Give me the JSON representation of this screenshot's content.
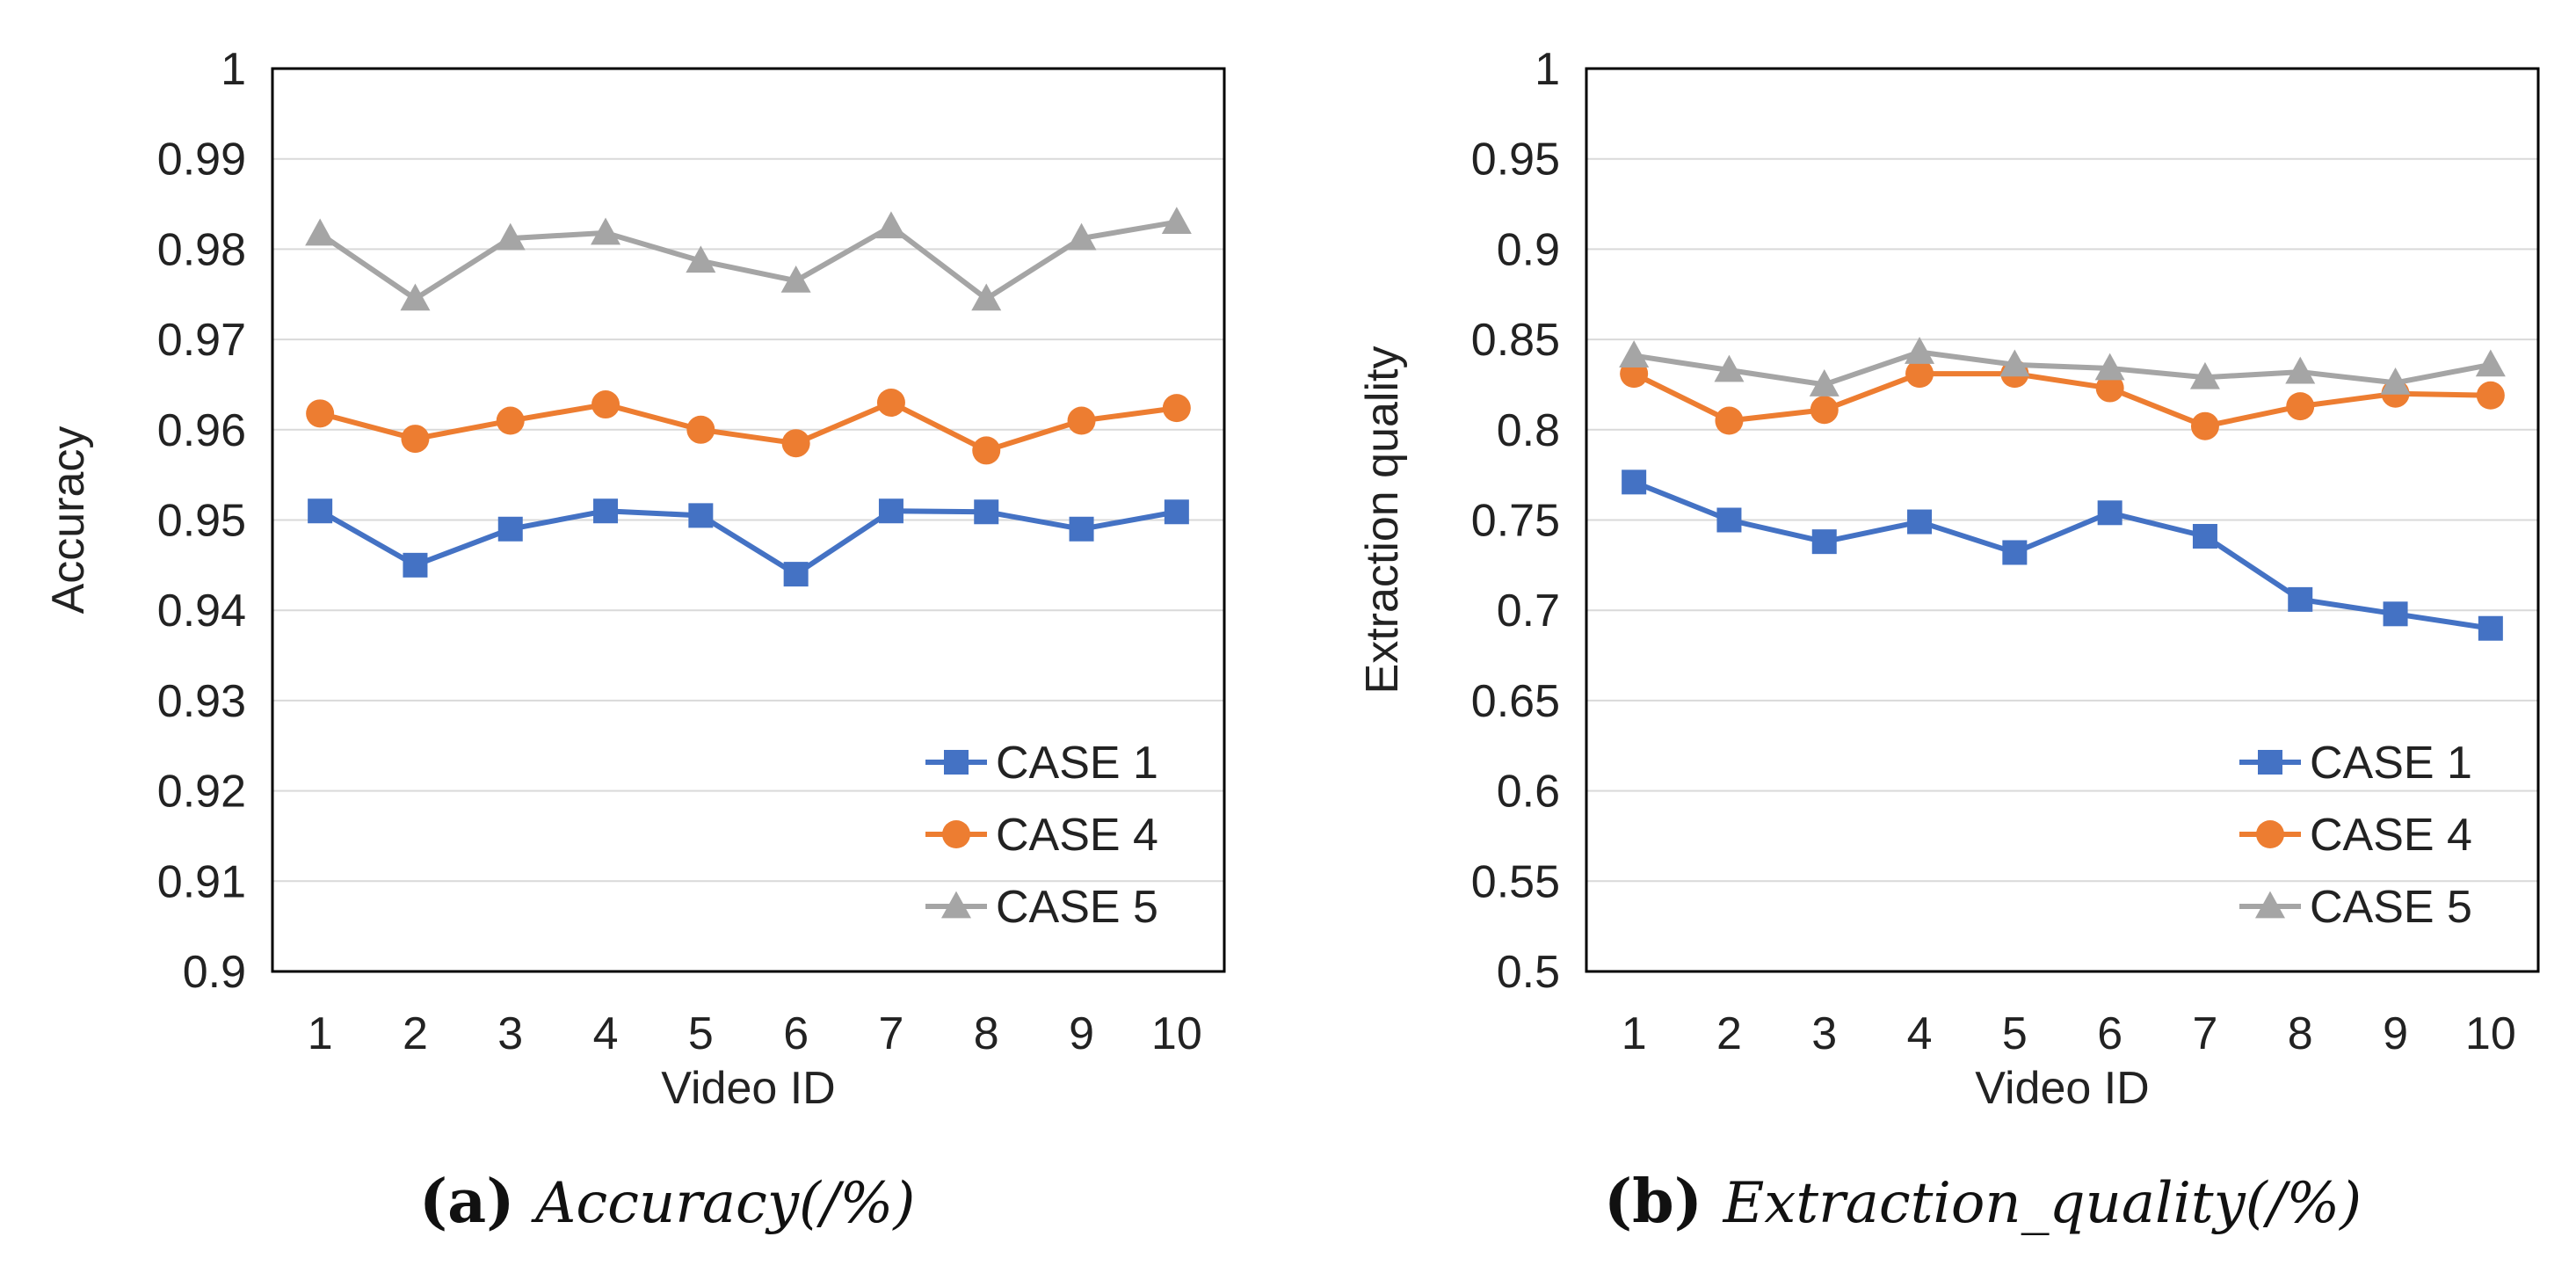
{
  "chart_data": [
    {
      "type": "line",
      "title": "",
      "caption_label": "(a)",
      "caption_text": "Accuracy(/%)",
      "xlabel": "Video ID",
      "ylabel": "Accuracy",
      "categories": [
        "1",
        "2",
        "3",
        "4",
        "5",
        "6",
        "7",
        "8",
        "9",
        "10"
      ],
      "ylim": [
        0.9,
        1.0
      ],
      "yticks": [
        0.9,
        0.91,
        0.92,
        0.93,
        0.94,
        0.95,
        0.96,
        0.97,
        0.98,
        0.99,
        1.0
      ],
      "ytick_labels": [
        "0.9",
        "0.91",
        "0.92",
        "0.93",
        "0.94",
        "0.95",
        "0.96",
        "0.97",
        "0.98",
        "0.99",
        "1"
      ],
      "grid": true,
      "legend_position": "bottom-right",
      "series": [
        {
          "name": "CASE 1",
          "color": "#4472C4",
          "marker": "square",
          "values": [
            0.951,
            0.945,
            0.949,
            0.951,
            0.9505,
            0.944,
            0.951,
            0.9509,
            0.949,
            0.9509
          ]
        },
        {
          "name": "CASE 4",
          "color": "#ED7D31",
          "marker": "circle",
          "values": [
            0.9618,
            0.959,
            0.961,
            0.9628,
            0.96,
            0.9585,
            0.963,
            0.9577,
            0.961,
            0.9624
          ]
        },
        {
          "name": "CASE 5",
          "color": "#A5A5A5",
          "marker": "triangle",
          "values": [
            0.9817,
            0.9745,
            0.9812,
            0.9818,
            0.9787,
            0.9765,
            0.9825,
            0.9745,
            0.9812,
            0.983
          ]
        }
      ]
    },
    {
      "type": "line",
      "title": "",
      "caption_label": "(b)",
      "caption_text": "Extraction_quality(/%)",
      "xlabel": "Video ID",
      "ylabel": "Extraction quality",
      "categories": [
        "1",
        "2",
        "3",
        "4",
        "5",
        "6",
        "7",
        "8",
        "9",
        "10"
      ],
      "ylim": [
        0.5,
        1.0
      ],
      "yticks": [
        0.5,
        0.55,
        0.6,
        0.65,
        0.7,
        0.75,
        0.8,
        0.85,
        0.9,
        0.95,
        1.0
      ],
      "ytick_labels": [
        "0.5",
        "0.55",
        "0.6",
        "0.65",
        "0.7",
        "0.75",
        "0.8",
        "0.85",
        "0.9",
        "0.95",
        "1"
      ],
      "grid": true,
      "legend_position": "bottom-right",
      "series": [
        {
          "name": "CASE 1",
          "color": "#4472C4",
          "marker": "square",
          "values": [
            0.771,
            0.75,
            0.738,
            0.749,
            0.732,
            0.754,
            0.741,
            0.706,
            0.698,
            0.69
          ]
        },
        {
          "name": "CASE 4",
          "color": "#ED7D31",
          "marker": "circle",
          "values": [
            0.831,
            0.805,
            0.811,
            0.831,
            0.831,
            0.823,
            0.802,
            0.813,
            0.82,
            0.819
          ]
        },
        {
          "name": "CASE 5",
          "color": "#A5A5A5",
          "marker": "triangle",
          "values": [
            0.841,
            0.833,
            0.825,
            0.843,
            0.836,
            0.834,
            0.829,
            0.832,
            0.826,
            0.836
          ]
        }
      ]
    }
  ]
}
